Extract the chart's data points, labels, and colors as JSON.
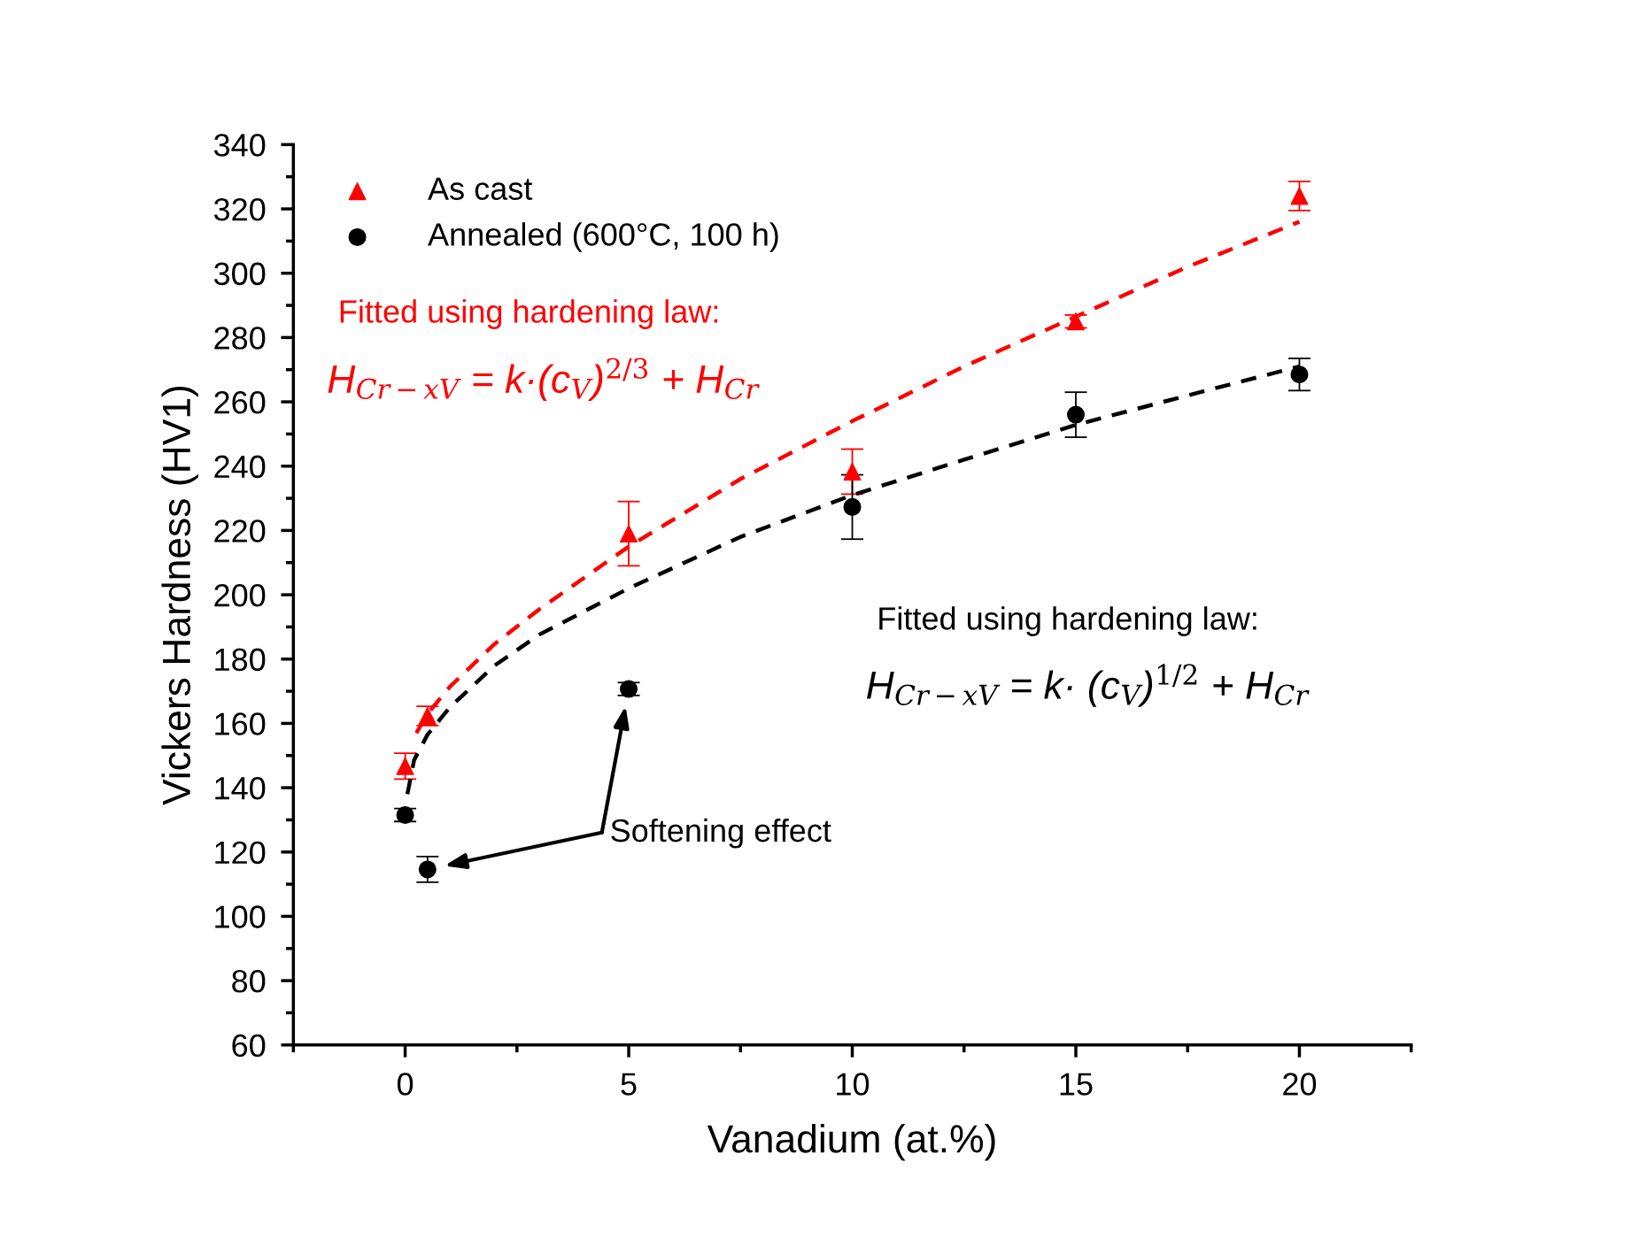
{
  "chart_data": {
    "type": "scatter",
    "xlabel": "Vanadium (at.%)",
    "ylabel": "Vickers Hardness (HV1)",
    "xlim": [
      -2.5,
      22.5
    ],
    "xticks": [
      0,
      5,
      10,
      15,
      20
    ],
    "ylim": [
      60,
      340
    ],
    "yticks": [
      60,
      80,
      100,
      120,
      140,
      160,
      180,
      200,
      220,
      240,
      260,
      280,
      300,
      320,
      340
    ],
    "grid": false,
    "legend": "top left",
    "series": [
      {
        "name": "As cast",
        "marker": "triangle",
        "color": "#ff0000",
        "x": [
          0,
          0.5,
          5,
          10,
          15,
          20
        ],
        "values": [
          146.7,
          162.3,
          219,
          238.3,
          285,
          324
        ],
        "errors": [
          4,
          3,
          10,
          7,
          2,
          4.5
        ]
      },
      {
        "name": "Annealed (600°C, 100 h)",
        "marker": "circle",
        "color": "#000000",
        "x": [
          0,
          0.5,
          5,
          10,
          15,
          20
        ],
        "values": [
          131.5,
          114.6,
          170.7,
          227.3,
          256,
          268.5
        ],
        "errors": [
          2,
          4,
          2,
          10,
          7,
          5
        ]
      },
      {
        "type": "line",
        "line_style": "dashed",
        "marker": "none",
        "color": "#ff0000",
        "x": [
          0.25,
          0.5,
          1,
          2,
          3,
          5,
          7.5,
          10,
          12.5,
          15,
          17.5,
          20
        ],
        "values": [
          157,
          163,
          171.4,
          184.7,
          195.5,
          215,
          236,
          254,
          271,
          286.5,
          302,
          316
        ]
      },
      {
        "type": "line",
        "line_style": "dashed",
        "marker": "none",
        "color": "#000000",
        "x": [
          0.05,
          0.2,
          0.5,
          1,
          2,
          3,
          5,
          7.5,
          10,
          12.5,
          15,
          17.5,
          20
        ],
        "values": [
          138,
          148.6,
          156.5,
          165,
          178,
          187.6,
          202,
          218,
          231,
          242,
          252.8,
          262,
          271
        ]
      }
    ],
    "annotations": [
      "Fitted using hardening law:",
      "H$_{Cr−xV}$ = k·(c$_{V}$)$^{2/3}$ + H$_{Cr}$",
      "Fitted using hardening law:",
      "H$_{Cr−xV}$ = k· (c$_{V}$)$^{1/2}$ + H$_{Cr}$",
      "Softening effect"
    ]
  }
}
